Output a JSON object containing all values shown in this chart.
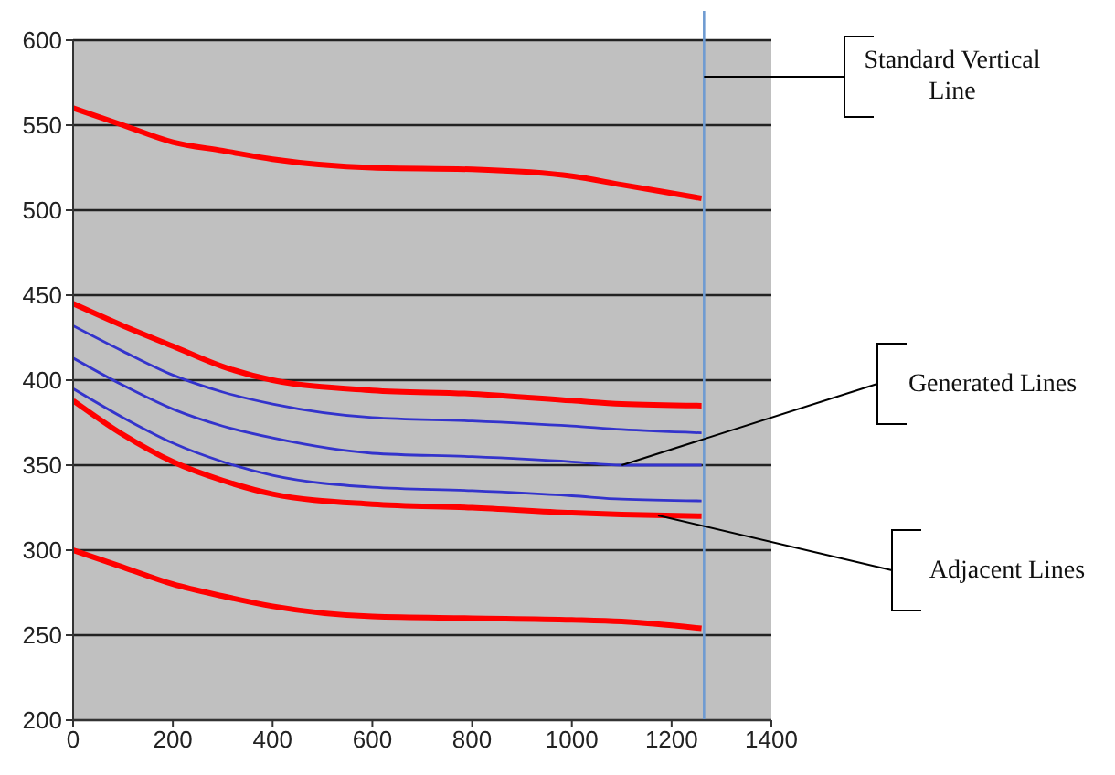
{
  "chart_data": {
    "type": "line",
    "x": [
      0,
      100,
      200,
      300,
      400,
      600,
      800,
      1000,
      1100,
      1260
    ],
    "series": [
      {
        "color": "#ff0000",
        "values": [
          560,
          550,
          540,
          535,
          530,
          525,
          524,
          520,
          515,
          507
        ]
      },
      {
        "color": "#ff0000",
        "values": [
          445,
          432,
          420,
          408,
          400,
          394,
          392,
          388,
          386,
          385
        ]
      },
      {
        "color": "#3333cc",
        "values": [
          432,
          417,
          403,
          393,
          386,
          378,
          376,
          373,
          371,
          369
        ]
      },
      {
        "color": "#3333cc",
        "values": [
          413,
          397,
          383,
          373,
          366,
          357,
          355,
          352,
          350,
          350
        ]
      },
      {
        "color": "#3333cc",
        "values": [
          395,
          378,
          363,
          352,
          344,
          337,
          335,
          332,
          330,
          329
        ]
      },
      {
        "color": "#ff0000",
        "values": [
          388,
          368,
          352,
          341,
          333,
          327,
          325,
          322,
          321,
          320
        ]
      },
      {
        "color": "#ff0000",
        "values": [
          300,
          290,
          280,
          273,
          267,
          261,
          260,
          259,
          258,
          254
        ]
      }
    ],
    "xlim": [
      0,
      1400
    ],
    "xticks": [
      0,
      200,
      400,
      600,
      800,
      1000,
      1200,
      1400
    ],
    "ylim": [
      200,
      600
    ],
    "yticks": [
      200,
      250,
      300,
      350,
      400,
      450,
      500,
      550,
      600
    ],
    "grid": "y",
    "marker": "none",
    "line_style": "solid",
    "ref_lines": [
      {
        "axis": "x",
        "value": 1265,
        "label": "Standard Vertical Line",
        "color": "#6f9bd1"
      }
    ],
    "annotations": [
      {
        "text": "Generated Lines",
        "x": 1100,
        "y": 350
      },
      "Adjacent Lines"
    ]
  }
}
